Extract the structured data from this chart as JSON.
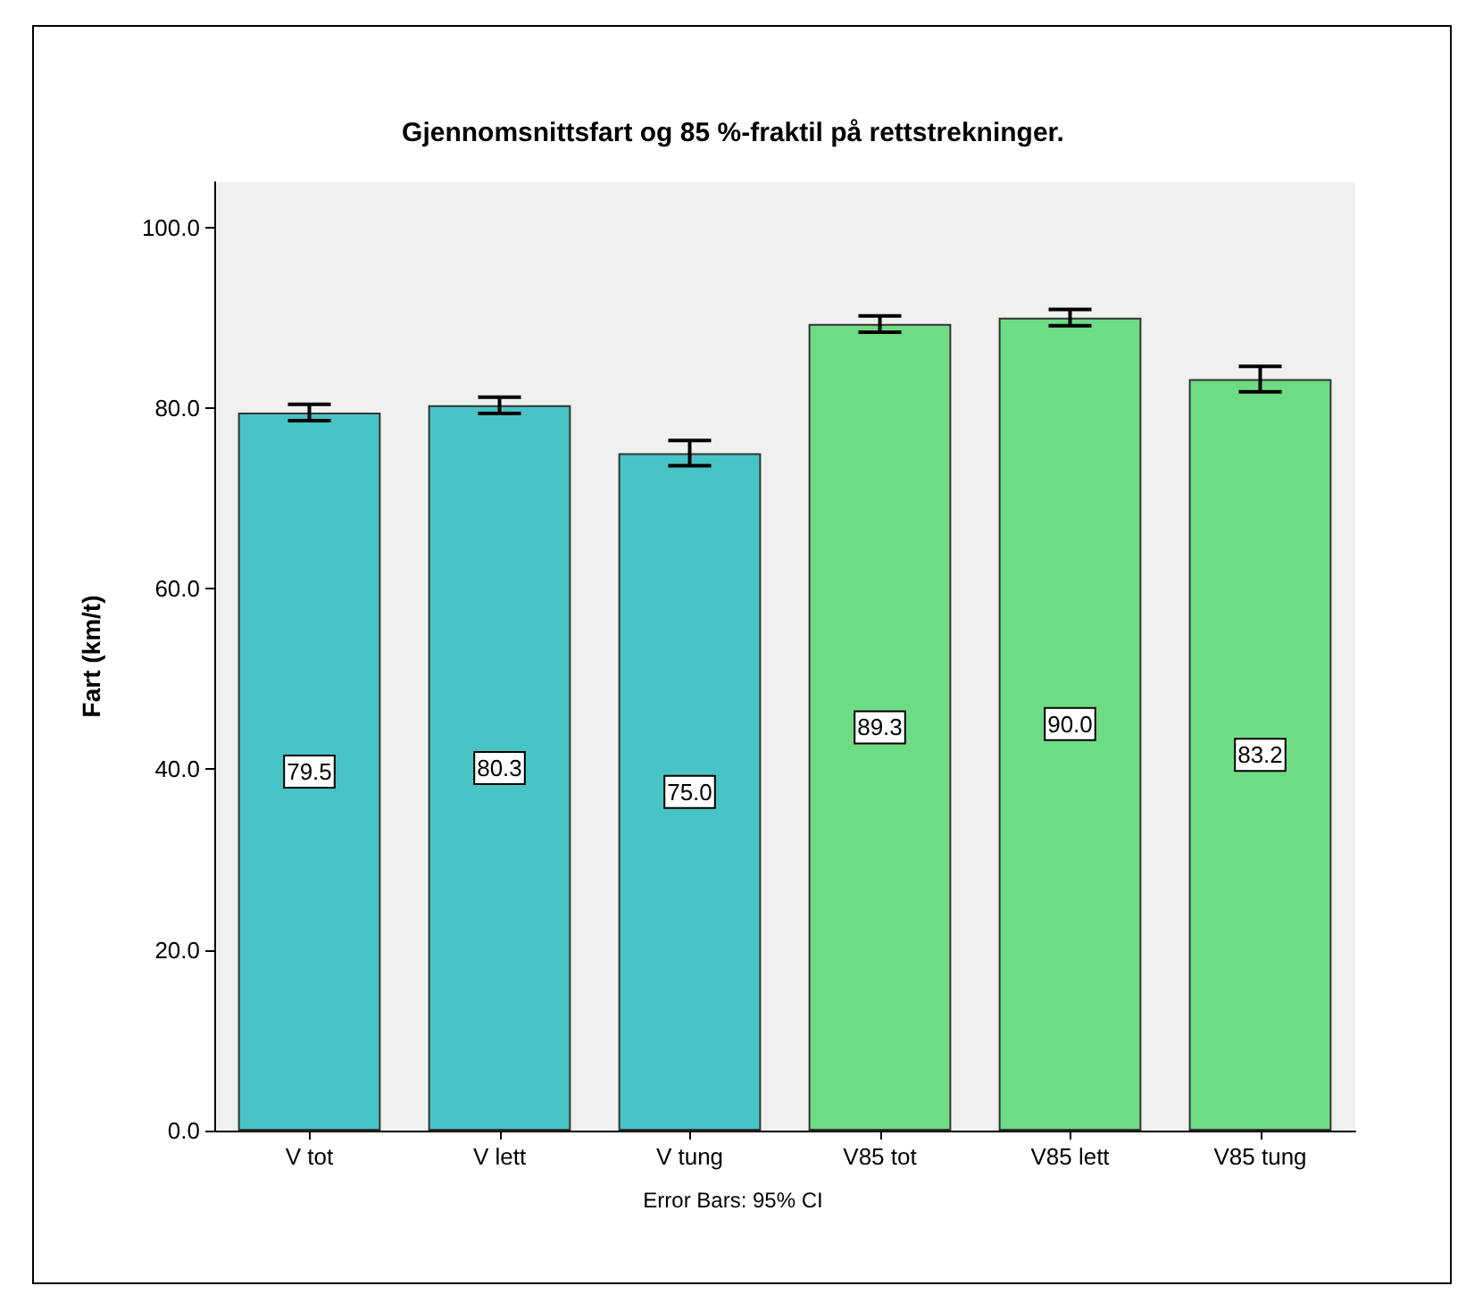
{
  "chart_data": {
    "type": "bar",
    "title": "Gjennomsnittsfart og 85 %-fraktil på rettstrekninger.",
    "ylabel": "Fart (km/t)",
    "categories": [
      "V tot",
      "V lett",
      "V tung",
      "V85 tot",
      "V85 lett",
      "V85 tung"
    ],
    "values": [
      79.5,
      80.3,
      75.0,
      89.3,
      90.0,
      83.2
    ],
    "colors": [
      "#48c3c6",
      "#48c3c6",
      "#48c3c6",
      "#6edc84",
      "#6edc84",
      "#6edc84"
    ],
    "errors": [
      0.9,
      0.9,
      1.4,
      0.9,
      0.9,
      1.4
    ],
    "value_labels": [
      "79.5",
      "80.3",
      "75.0",
      "89.3",
      "90.0",
      "83.2"
    ],
    "ylim": [
      0,
      105
    ],
    "yticks": [
      {
        "value": 0,
        "label": "0.0"
      },
      {
        "value": 20,
        "label": "20.0"
      },
      {
        "value": 40,
        "label": "40.0"
      },
      {
        "value": 60,
        "label": "60.0"
      },
      {
        "value": 80,
        "label": "80.0"
      },
      {
        "value": 100,
        "label": "100.0"
      }
    ],
    "grid": false,
    "annotations": [
      "Error Bars: 95% CI"
    ]
  }
}
